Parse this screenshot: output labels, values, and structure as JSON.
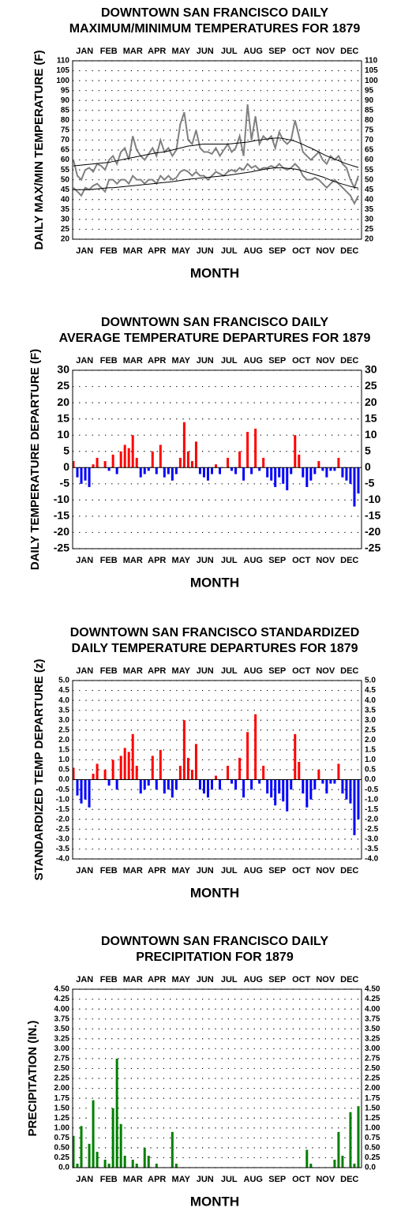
{
  "chart_data": [
    {
      "type": "line",
      "title": [
        "DOWNTOWN SAN FRANCISCO DAILY",
        "MAXIMUM/MINIMUM TEMPERATURES FOR 1879"
      ],
      "xlabel": "MONTH",
      "ylabel": "DAILY MAX/MIN TEMPERATURE (F)",
      "categories": [
        "JAN",
        "FEB",
        "MAR",
        "APR",
        "MAY",
        "JUN",
        "JUL",
        "AUG",
        "SEP",
        "OCT",
        "NOV",
        "DEC"
      ],
      "x": [
        1,
        6,
        11,
        16,
        21,
        26,
        31,
        36,
        41,
        46,
        51,
        56,
        61,
        66,
        71,
        76,
        81,
        86,
        91,
        96,
        101,
        106,
        111,
        116,
        121,
        126,
        131,
        136,
        141,
        146,
        151,
        156,
        161,
        166,
        171,
        176,
        181,
        186,
        191,
        196,
        201,
        206,
        211,
        216,
        221,
        226,
        231,
        236,
        241,
        246,
        251,
        256,
        261,
        266,
        271,
        276,
        281,
        286,
        291,
        296,
        301,
        306,
        311,
        316,
        321,
        326,
        331,
        336,
        341,
        346,
        351,
        356,
        361
      ],
      "xlim": [
        0,
        365
      ],
      "series": [
        {
          "color": "#808080",
          "values": [
            60,
            52,
            50,
            55,
            56,
            54,
            58,
            57,
            55,
            60,
            62,
            58,
            64,
            66,
            60,
            72,
            65,
            62,
            60,
            63,
            66,
            62,
            70,
            64,
            66,
            62,
            65,
            78,
            84,
            70,
            68,
            75,
            66,
            64,
            64,
            63,
            66,
            62,
            65,
            68,
            64,
            66,
            72,
            62,
            88,
            70,
            82,
            68,
            72,
            70,
            72,
            66,
            74,
            70,
            68,
            70,
            80,
            72,
            64,
            62,
            60,
            62,
            64,
            60,
            58,
            62,
            60,
            62,
            58,
            56,
            50,
            46,
            52
          ]
        },
        {
          "color": "#808080",
          "values": [
            46,
            44,
            42,
            46,
            45,
            47,
            48,
            46,
            44,
            50,
            50,
            48,
            50,
            50,
            48,
            52,
            50,
            50,
            48,
            50,
            50,
            48,
            52,
            50,
            52,
            50,
            51,
            54,
            55,
            54,
            52,
            54,
            52,
            52,
            50,
            52,
            54,
            53,
            52,
            54,
            55,
            54,
            56,
            55,
            58,
            56,
            57,
            55,
            56,
            56,
            57,
            56,
            58,
            56,
            55,
            56,
            58,
            56,
            52,
            50,
            50,
            51,
            50,
            48,
            46,
            48,
            50,
            48,
            46,
            44,
            42,
            38,
            42
          ]
        },
        {
          "color": "#000000",
          "values": [
            57,
            57.2,
            57.4,
            57.6,
            57.8,
            58,
            58.2,
            58.4,
            58.6,
            58.8,
            59.2,
            59.6,
            60,
            60.4,
            60.8,
            61.2,
            61.6,
            62,
            62.4,
            62.8,
            63.2,
            63.6,
            63.8,
            64,
            64.5,
            65,
            65.5,
            66,
            66.5,
            67,
            67.2,
            67.5,
            67.8,
            68,
            68,
            68,
            68,
            68,
            68,
            68,
            68.2,
            68.4,
            68.6,
            68.8,
            69,
            69.4,
            69.8,
            70,
            70.3,
            70.6,
            70.8,
            71,
            71,
            70.8,
            70.4,
            70,
            69.4,
            68.6,
            67.8,
            66.8,
            66,
            65,
            64,
            63,
            62,
            61.2,
            60.4,
            59.6,
            58.8,
            58,
            57.4,
            56.8,
            56.2
          ]
        },
        {
          "color": "#000000",
          "values": [
            45,
            45,
            45,
            45,
            45,
            45.2,
            45.4,
            45.6,
            45.8,
            46,
            46,
            46.2,
            46.4,
            46.6,
            46.8,
            47,
            47.2,
            47.4,
            47.6,
            47.8,
            48,
            48.2,
            48.4,
            48.6,
            48.8,
            49,
            49.3,
            49.6,
            49.9,
            50.2,
            50.4,
            50.6,
            50.8,
            51,
            51.2,
            51.4,
            51.6,
            51.8,
            52,
            52.2,
            52.5,
            52.8,
            53.1,
            53.4,
            53.7,
            54,
            54.4,
            54.8,
            55.2,
            55.5,
            55.8,
            56,
            56,
            56,
            55.8,
            55.6,
            55.4,
            55,
            54.4,
            53.8,
            53.2,
            52.6,
            52,
            51.4,
            50.6,
            49.8,
            49,
            48.4,
            47.8,
            47.2,
            46.6,
            46.2,
            45.8
          ]
        }
      ],
      "ylim": [
        20,
        110
      ],
      "yticks": [
        20,
        25,
        30,
        35,
        40,
        45,
        50,
        55,
        60,
        65,
        70,
        75,
        80,
        85,
        90,
        95,
        100,
        105,
        110
      ],
      "grid": true
    },
    {
      "type": "bar",
      "title": [
        "DOWNTOWN SAN FRANCISCO DAILY",
        "AVERAGE TEMPERATURE DEPARTURES FOR 1879"
      ],
      "xlabel": "MONTH",
      "ylabel": "DAILY TEMPERATURE DEPARTURE (F)",
      "categories": [
        "JAN",
        "FEB",
        "MAR",
        "APR",
        "MAY",
        "JUN",
        "JUL",
        "AUG",
        "SEP",
        "OCT",
        "NOV",
        "DEC"
      ],
      "x": [
        1,
        6,
        11,
        16,
        21,
        26,
        31,
        36,
        41,
        46,
        51,
        56,
        61,
        66,
        71,
        76,
        81,
        86,
        91,
        96,
        101,
        106,
        111,
        116,
        121,
        126,
        131,
        136,
        141,
        146,
        151,
        156,
        161,
        166,
        171,
        176,
        181,
        186,
        191,
        196,
        201,
        206,
        211,
        216,
        221,
        226,
        231,
        236,
        241,
        246,
        251,
        256,
        261,
        266,
        271,
        276,
        281,
        286,
        291,
        296,
        301,
        306,
        311,
        316,
        321,
        326,
        331,
        336,
        341,
        346,
        351,
        356,
        361
      ],
      "xlim": [
        0,
        365
      ],
      "values": [
        2,
        -3,
        -5,
        -4,
        -6,
        1,
        3,
        0,
        2,
        -1,
        4,
        -2,
        5,
        7,
        6,
        10,
        3,
        -3,
        -2,
        -1,
        5,
        -2,
        7,
        -3,
        -2,
        -4,
        -2,
        3,
        14,
        5,
        2,
        8,
        -2,
        -3,
        -4,
        -2,
        1,
        -2,
        0,
        3,
        -1,
        -2,
        5,
        -4,
        11,
        -2,
        12,
        -1,
        3,
        -3,
        -4,
        -6,
        -3,
        -5,
        -7,
        -2,
        10,
        4,
        -3,
        -6,
        -4,
        -2,
        2,
        -1,
        -3,
        -1,
        -1,
        3,
        -3,
        -4,
        -5,
        -12,
        -8
      ],
      "positive_color": "#ff0000",
      "negative_color": "#0000ff",
      "ylim": [
        -25,
        30
      ],
      "yticks": [
        -25,
        -20,
        -15,
        -10,
        -5,
        0,
        5,
        10,
        15,
        20,
        25,
        30
      ],
      "grid": true
    },
    {
      "type": "bar",
      "title": [
        "DOWNTOWN SAN FRANCISCO STANDARDIZED",
        "DAILY TEMPERATURE DEPARTURES FOR 1879"
      ],
      "xlabel": "MONTH",
      "ylabel": "STANDARDIZED TEMP DEPARTURE (z)",
      "categories": [
        "JAN",
        "FEB",
        "MAR",
        "APR",
        "MAY",
        "JUN",
        "JUL",
        "AUG",
        "SEP",
        "OCT",
        "NOV",
        "DEC"
      ],
      "x": [
        1,
        6,
        11,
        16,
        21,
        26,
        31,
        36,
        41,
        46,
        51,
        56,
        61,
        66,
        71,
        76,
        81,
        86,
        91,
        96,
        101,
        106,
        111,
        116,
        121,
        126,
        131,
        136,
        141,
        146,
        151,
        156,
        161,
        166,
        171,
        176,
        181,
        186,
        191,
        196,
        201,
        206,
        211,
        216,
        221,
        226,
        231,
        236,
        241,
        246,
        251,
        256,
        261,
        266,
        271,
        276,
        281,
        286,
        291,
        296,
        301,
        306,
        311,
        316,
        321,
        326,
        331,
        336,
        341,
        346,
        351,
        356,
        361
      ],
      "xlim": [
        0,
        365
      ],
      "values": [
        0.6,
        -0.8,
        -1.2,
        -1,
        -1.4,
        0.3,
        0.8,
        0,
        0.5,
        -0.3,
        1,
        -0.5,
        1.2,
        1.6,
        1.4,
        2.3,
        0.7,
        -0.7,
        -0.5,
        -0.3,
        1.2,
        -0.5,
        1.5,
        -0.7,
        -0.5,
        -0.9,
        -0.5,
        0.7,
        3,
        1.1,
        0.5,
        1.8,
        -0.5,
        -0.7,
        -0.9,
        -0.5,
        0.2,
        -0.5,
        0,
        0.7,
        -0.2,
        -0.5,
        1.1,
        -0.9,
        2.4,
        -0.5,
        3.3,
        -0.2,
        0.7,
        -0.7,
        -0.9,
        -1.3,
        -0.7,
        -1.1,
        -1.6,
        -0.5,
        2.3,
        0.9,
        -0.7,
        -1.4,
        -1,
        -0.5,
        0.5,
        -0.2,
        -0.7,
        -0.2,
        -0.2,
        0.8,
        -0.7,
        -1,
        -1.2,
        -2.8,
        -2
      ],
      "positive_color": "#ff0000",
      "negative_color": "#0000ff",
      "ylim": [
        -4,
        5
      ],
      "yticks": [
        {
          "value": -4,
          "label": "-4.0"
        },
        -3.5,
        {
          "value": -3,
          "label": "-3.0"
        },
        -2.5,
        {
          "value": -2,
          "label": "-2.0"
        },
        -1.5,
        {
          "value": -1,
          "label": "-1.0"
        },
        -0.5,
        {
          "value": 0,
          "label": "0.0"
        },
        0.5,
        {
          "value": 1,
          "label": "1.0"
        },
        1.5,
        {
          "value": 2,
          "label": "2.0"
        },
        2.5,
        {
          "value": 3,
          "label": "3.0"
        },
        3.5,
        {
          "value": 4,
          "label": "4.0"
        },
        4.5,
        {
          "value": 5,
          "label": "5.0"
        }
      ],
      "grid": true
    },
    {
      "type": "bar",
      "title": [
        "DOWNTOWN SAN FRANCISCO DAILY",
        "PRECIPITATION FOR 1879"
      ],
      "xlabel": "MONTH",
      "ylabel": "PRECIPITATION (IN.)",
      "categories": [
        "JAN",
        "FEB",
        "MAR",
        "APR",
        "MAY",
        "JUN",
        "JUL",
        "AUG",
        "SEP",
        "OCT",
        "NOV",
        "DEC"
      ],
      "x": [
        1,
        6,
        11,
        16,
        21,
        26,
        31,
        36,
        41,
        46,
        51,
        56,
        61,
        66,
        71,
        76,
        81,
        86,
        91,
        96,
        101,
        106,
        111,
        116,
        121,
        126,
        131,
        136,
        141,
        146,
        151,
        156,
        161,
        166,
        171,
        176,
        181,
        186,
        191,
        196,
        201,
        206,
        211,
        216,
        221,
        226,
        231,
        236,
        241,
        246,
        251,
        256,
        261,
        266,
        271,
        276,
        281,
        286,
        291,
        296,
        301,
        306,
        311,
        316,
        321,
        326,
        331,
        336,
        341,
        346,
        351,
        356,
        361
      ],
      "xlim": [
        0,
        365
      ],
      "values": [
        0.8,
        0.1,
        1.05,
        0,
        0.6,
        1.7,
        0.4,
        0,
        0.2,
        0.1,
        1.5,
        2.75,
        1.1,
        0.3,
        0,
        0.2,
        0.1,
        0,
        0.5,
        0.3,
        0,
        0.1,
        0,
        0,
        0,
        0.9,
        0.1,
        0,
        0,
        0,
        0,
        0,
        0,
        0,
        0,
        0,
        0,
        0,
        0,
        0,
        0,
        0,
        0,
        0,
        0,
        0,
        0,
        0,
        0,
        0,
        0,
        0,
        0,
        0,
        0,
        0,
        0,
        0,
        0,
        0.45,
        0.1,
        0,
        0,
        0,
        0,
        0,
        0.2,
        0.9,
        0.3,
        0,
        1.4,
        0.1,
        1.55
      ],
      "color": "#008000",
      "ylim": [
        0,
        4.5
      ],
      "yticks": [
        {
          "value": 0,
          "label": "0.0"
        },
        0.25,
        {
          "value": 0.5,
          "label": "0.50"
        },
        0.75,
        {
          "value": 1,
          "label": "1.00"
        },
        1.25,
        {
          "value": 1.5,
          "label": "1.50"
        },
        1.75,
        {
          "value": 2,
          "label": "2.00"
        },
        2.25,
        {
          "value": 2.5,
          "label": "2.50"
        },
        2.75,
        {
          "value": 3,
          "label": "3.00"
        },
        3.25,
        {
          "value": 3.5,
          "label": "3.50"
        },
        3.75,
        {
          "value": 4,
          "label": "4.00"
        },
        4.25,
        {
          "value": 4.5,
          "label": "4.50"
        }
      ],
      "grid": true
    }
  ]
}
